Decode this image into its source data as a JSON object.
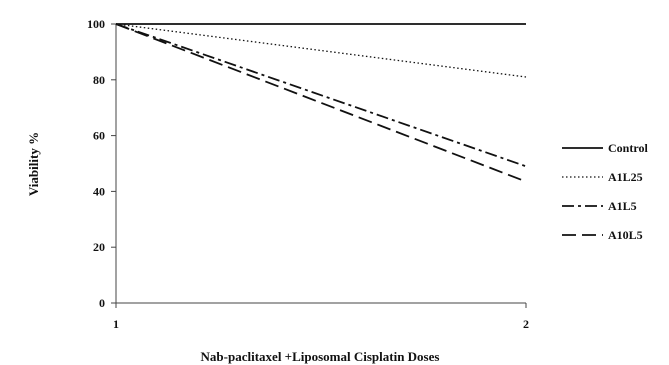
{
  "chart_data": {
    "type": "line",
    "title": "",
    "xlabel": "Nab-paclitaxel +Liposomal Cisplatin Doses",
    "ylabel": "Viability %",
    "x": [
      1,
      2
    ],
    "x_ticks": [
      "1",
      "2"
    ],
    "y_ticks": [
      "0",
      "20",
      "40",
      "60",
      "80",
      "100"
    ],
    "ylim": [
      0,
      100
    ],
    "grid": false,
    "legend_position": "right",
    "series": [
      {
        "name": "Control",
        "values": [
          100,
          100
        ],
        "style": "solid",
        "color": "#111111"
      },
      {
        "name": "A1L25",
        "values": [
          100,
          81
        ],
        "style": "dotted",
        "color": "#111111"
      },
      {
        "name": "A1L5",
        "values": [
          100,
          49
        ],
        "style": "dash-dot",
        "color": "#111111"
      },
      {
        "name": "A10L5",
        "values": [
          100,
          43.5
        ],
        "style": "dashed",
        "color": "#111111"
      }
    ]
  }
}
